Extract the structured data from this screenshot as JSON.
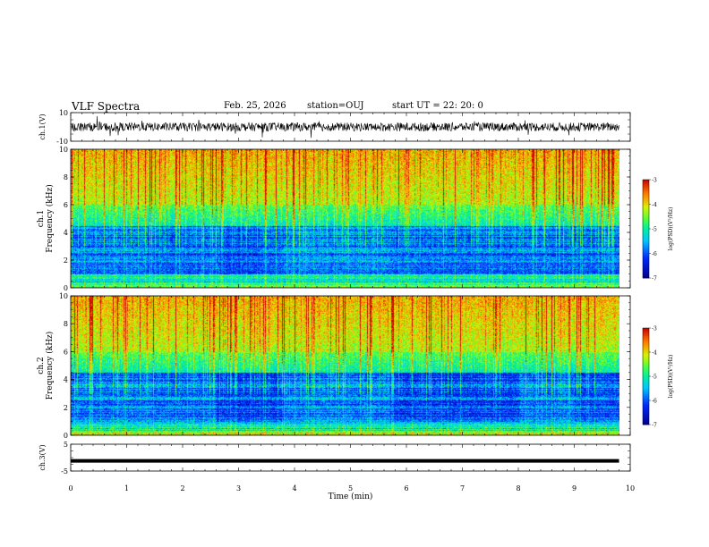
{
  "header": {
    "title": "VLF Spectra",
    "date": "Feb. 25, 2026",
    "station": "station=OUJ",
    "start": "start  UT =   22: 20: 0"
  },
  "chart_data": [
    {
      "type": "line",
      "title": "ch.1 waveform",
      "ylabel": "ch.1(V)",
      "ylim": [
        -10,
        10
      ],
      "ytick_labels": [
        "10",
        "-10"
      ],
      "xlim": [
        0,
        10
      ],
      "note": "dense noise trace centred on 0 V, roughly +/-3 V with spikes"
    },
    {
      "type": "heatmap",
      "title": "ch.1 spectrogram",
      "ylabel": "ch.1 Frequency (kHz)",
      "ylim": [
        0,
        10
      ],
      "ytick_labels": [
        "0",
        "2",
        "4",
        "6",
        "8",
        "10"
      ],
      "xlim": [
        0,
        9.8
      ],
      "colorbar": {
        "label": "log(PSD)(V²/Hz)",
        "range": [
          -7,
          -3
        ],
        "tick_labels": [
          "-3",
          "-4",
          "-5",
          "-6",
          "-7"
        ]
      }
    },
    {
      "type": "heatmap",
      "title": "ch.2 spectrogram",
      "ylabel": "ch.2 Frequency (kHz)",
      "ylim": [
        0,
        10
      ],
      "ytick_labels": [
        "0",
        "2",
        "4",
        "6",
        "8",
        "10"
      ],
      "xlim": [
        0,
        9.8
      ],
      "colorbar": {
        "label": "log(PSD)(V²/Hz)",
        "range": [
          -7,
          -3
        ],
        "tick_labels": [
          "-3",
          "-4",
          "-5",
          "-6",
          "-7"
        ]
      }
    },
    {
      "type": "line",
      "title": "ch.3 waveform",
      "ylabel": "ch.3(V)",
      "ylim": [
        -5,
        5
      ],
      "ytick_labels": [
        "5",
        "-5"
      ],
      "xlim": [
        0,
        10
      ],
      "values": {
        "x": [
          0,
          9.8
        ],
        "y": [
          -1.2,
          -1.2
        ]
      }
    }
  ],
  "xaxis": {
    "label": "Time (min)",
    "ticks": [
      "0",
      "1",
      "2",
      "3",
      "4",
      "5",
      "6",
      "7",
      "8",
      "9",
      "10"
    ]
  }
}
